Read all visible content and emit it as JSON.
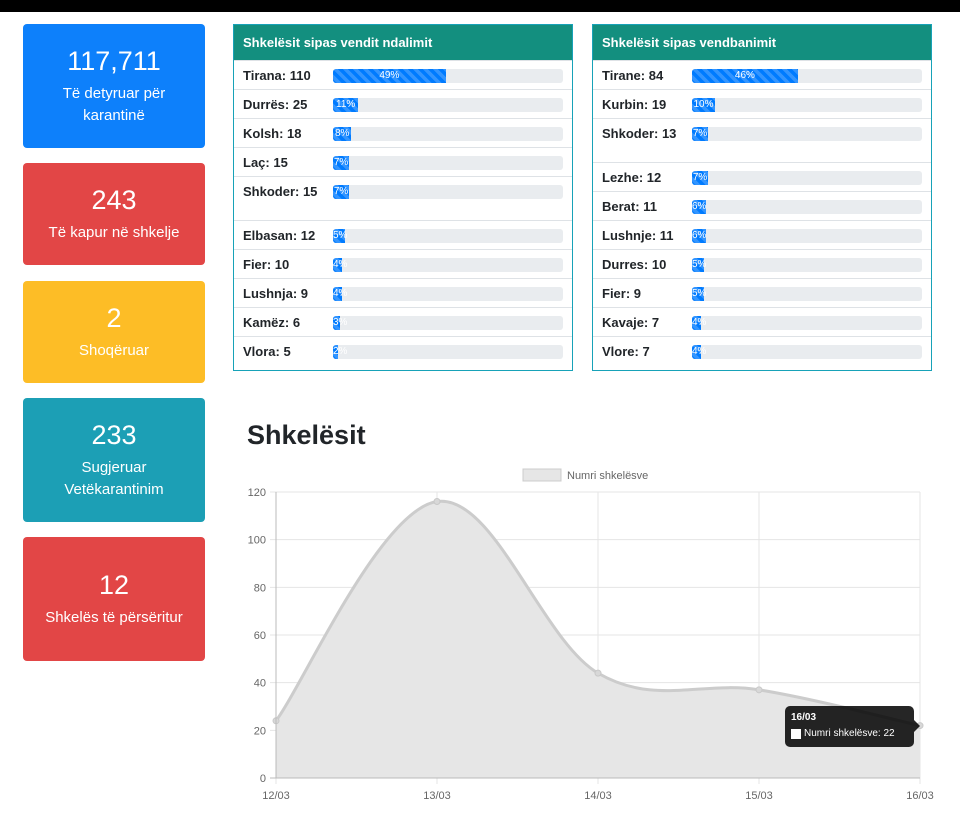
{
  "stats": [
    {
      "value": "117,711",
      "label": "Të detyruar për karantinë",
      "color": "#0d80fb"
    },
    {
      "value": "243",
      "label": "Të kapur në shkelje",
      "color": "#e24646"
    },
    {
      "value": "2",
      "label": "Shoqëruar",
      "color": "#fdbd26"
    },
    {
      "value": "233",
      "label": "Sugjeruar Vetëkarantinim",
      "color": "#1c9fb5"
    },
    {
      "value": "12",
      "label": "Shkelës të përsëritur",
      "color": "#e24646"
    }
  ],
  "table_stop": {
    "title": "Shkelësit sipas vendit ndalimit",
    "rows": [
      {
        "name": "Tirana: 110",
        "percent": 49,
        "label": "49%"
      },
      {
        "name": "Durrës: 25",
        "percent": 11,
        "label": "11%"
      },
      {
        "name": "Kolsh: 18",
        "percent": 8,
        "label": "8%"
      },
      {
        "name": "Laç: 15",
        "percent": 7,
        "label": "7%"
      },
      {
        "name": "Shkoder: 15",
        "percent": 7,
        "label": "7%"
      },
      {
        "name": "Elbasan: 12",
        "percent": 5,
        "label": "5%"
      },
      {
        "name": "Fier: 10",
        "percent": 4,
        "label": "4%"
      },
      {
        "name": "Lushnja: 9",
        "percent": 4,
        "label": "4%"
      },
      {
        "name": "Kamëz: 6",
        "percent": 3,
        "label": "3%"
      },
      {
        "name": "Vlora: 5",
        "percent": 2,
        "label": "2%"
      }
    ]
  },
  "table_residence": {
    "title": "Shkelësit sipas vendbanimit",
    "rows": [
      {
        "name": "Tirane: 84",
        "percent": 46,
        "label": "46%"
      },
      {
        "name": "Kurbin: 19",
        "percent": 10,
        "label": "10%"
      },
      {
        "name": "Shkoder: 13",
        "percent": 7,
        "label": "7%"
      },
      {
        "name": "Lezhe: 12",
        "percent": 7,
        "label": "7%"
      },
      {
        "name": "Berat: 11",
        "percent": 6,
        "label": "6%"
      },
      {
        "name": "Lushnje: 11",
        "percent": 6,
        "label": "6%"
      },
      {
        "name": "Durres: 10",
        "percent": 5,
        "label": "5%"
      },
      {
        "name": "Fier: 9",
        "percent": 5,
        "label": "5%"
      },
      {
        "name": "Kavaje: 7",
        "percent": 4,
        "label": "4%"
      },
      {
        "name": "Vlore: 7",
        "percent": 4,
        "label": "4%"
      }
    ]
  },
  "chart_title": "Shkelësit",
  "chart_data": {
    "type": "area",
    "categories": [
      "12/03",
      "13/03",
      "14/03",
      "15/03",
      "16/03"
    ],
    "series": [
      {
        "name": "Numri shkelësve",
        "values": [
          24,
          116,
          44,
          37,
          22
        ]
      }
    ],
    "ylim": [
      0,
      120
    ],
    "yticks": [
      0,
      20,
      40,
      60,
      80,
      100,
      120
    ],
    "grid": true,
    "legend": "top",
    "fill_color": "#e6e6e6",
    "line_color": "#cccccc"
  },
  "tooltip": {
    "title": "16/03",
    "text": "Numri shkelësve: 22"
  }
}
